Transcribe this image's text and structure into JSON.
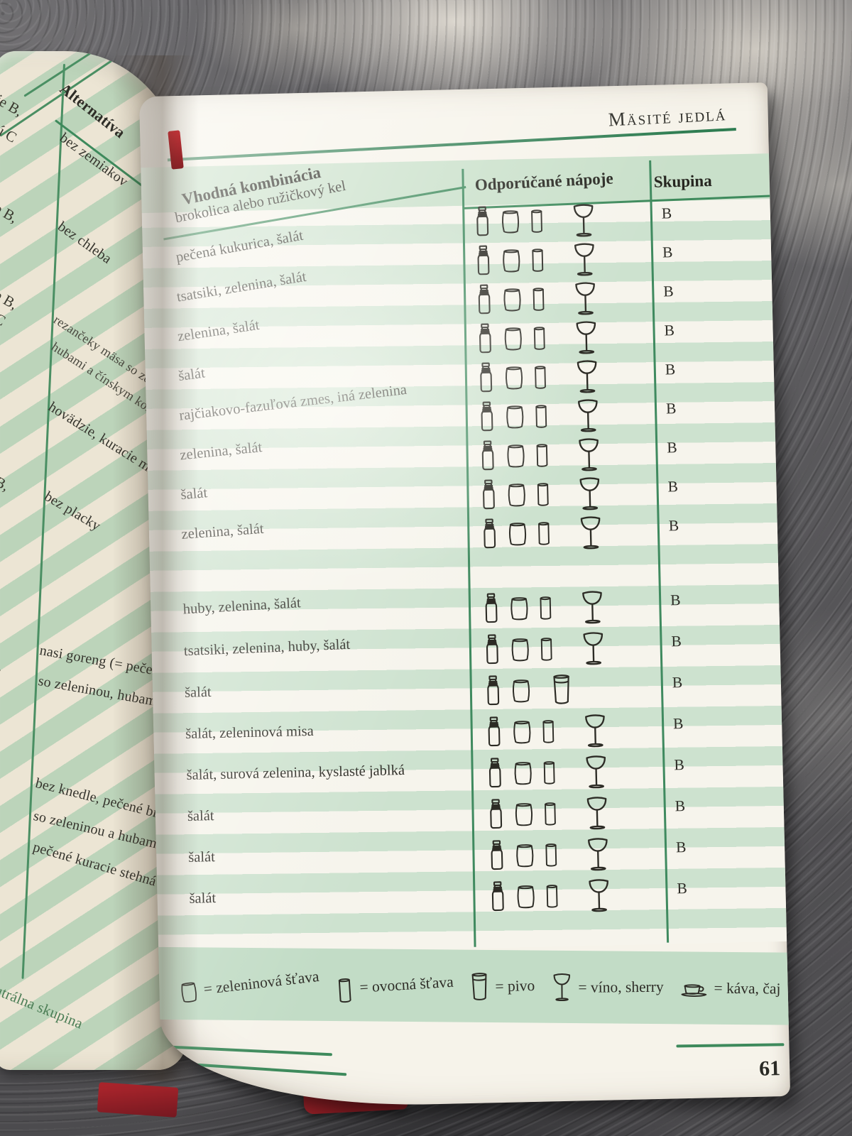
{
  "colors": {
    "rule_green": "#3e8a5c",
    "stripe_green": "#cde2cf",
    "cover_red": "#c0272d"
  },
  "book": {
    "right_page": {
      "header": "Mäsité jedlá",
      "page_number": "61",
      "table": {
        "col_combination": "Vhodná kombinácia",
        "col_drinks": "Odporúčané nápoje",
        "col_group": "Skupina",
        "rows": [
          {
            "label": "brokolica alebo ružičkový kel",
            "icons": [
              "bottle",
              "vegetable-juice",
              "fruit-juice",
              "wine-glass"
            ],
            "group": "B"
          },
          {
            "label": "pečená kukurica, šalát",
            "icons": [
              "bottle",
              "vegetable-juice",
              "fruit-juice",
              "wine-glass"
            ],
            "group": "B"
          },
          {
            "label": "tsatsiki, zelenina, šalát",
            "icons": [
              "bottle",
              "vegetable-juice",
              "fruit-juice",
              "wine-glass"
            ],
            "group": "B"
          },
          {
            "label": "zelenina, šalát",
            "icons": [
              "bottle",
              "vegetable-juice",
              "fruit-juice",
              "wine-glass"
            ],
            "group": "B"
          },
          {
            "label": "šalát",
            "icons": [
              "bottle",
              "vegetable-juice",
              "fruit-juice",
              "wine-glass"
            ],
            "group": "B"
          },
          {
            "label": "rajčiakovo-fazuľová zmes, iná zelenina",
            "icons": [
              "bottle",
              "vegetable-juice",
              "fruit-juice",
              "wine-glass"
            ],
            "group": "B"
          },
          {
            "label": "zelenina, šalát",
            "icons": [
              "bottle",
              "vegetable-juice",
              "fruit-juice",
              "wine-glass"
            ],
            "group": "B"
          },
          {
            "label": "šalát",
            "icons": [
              "bottle",
              "vegetable-juice",
              "fruit-juice",
              "wine-glass"
            ],
            "group": "B"
          },
          {
            "label": "zelenina, šalát",
            "icons": [
              "bottle",
              "vegetable-juice",
              "fruit-juice",
              "wine-glass"
            ],
            "group": "B"
          },
          {
            "label": "huby, zelenina, šalát",
            "gap_before": true,
            "icons": [
              "bottle",
              "vegetable-juice",
              "fruit-juice",
              "wine-glass"
            ],
            "group": "B"
          },
          {
            "label": "tsatsiki, zelenina, huby, šalát",
            "icons": [
              "bottle",
              "vegetable-juice",
              "fruit-juice",
              "wine-glass"
            ],
            "group": "B"
          },
          {
            "label": "šalát",
            "icons": [
              "bottle",
              "vegetable-juice",
              "beer"
            ],
            "group": "B"
          },
          {
            "label": "šalát, zeleninová misa",
            "icons": [
              "bottle",
              "vegetable-juice",
              "fruit-juice",
              "wine-glass"
            ],
            "group": "B"
          },
          {
            "label": "šalát, surová zelenina, kyslasté jablká",
            "icons": [
              "bottle",
              "vegetable-juice",
              "fruit-juice",
              "wine-glass"
            ],
            "group": "B"
          },
          {
            "label": "šalát",
            "icons": [
              "bottle",
              "vegetable-juice",
              "fruit-juice",
              "wine-glass"
            ],
            "group": "B"
          },
          {
            "label": "šalát",
            "icons": [
              "bottle",
              "vegetable-juice",
              "fruit-juice",
              "wine-glass"
            ],
            "group": "B"
          },
          {
            "label": "šalát",
            "icons": [
              "bottle",
              "vegetable-juice",
              "fruit-juice",
              "wine-glass"
            ],
            "group": "B"
          }
        ]
      },
      "legend": {
        "items": [
          {
            "icon": "vegetable-juice",
            "label": "= zeleninová šťava"
          },
          {
            "icon": "fruit-juice",
            "label": "= ovocná šťava"
          },
          {
            "icon": "beer",
            "label": "= pivo"
          },
          {
            "icon": "wine-glass",
            "label": "= víno, sherry"
          },
          {
            "icon": "coffee-cup",
            "label": "= káva, čaj"
          }
        ]
      }
    },
    "left_page": {
      "column_header": "Alternatíva",
      "entries": [
        "bez zemiakov",
        "bez chleba",
        "rezančeky mäsa so zelen",
        "hubami a čínskym koren",
        "hovädzie, kuracie mäso",
        "bez placky",
        "nasi goreng (= pečená ryž",
        "so zeleninou, hubami",
        "bez knedle, pečené bravč",
        "so zeleninou a hubami",
        "pečené kuracie stehná",
        "utrálna skupina"
      ],
      "edge_fragments": [
        "je B,",
        "ú C",
        "e B,",
        "e B,",
        "C",
        "B,",
        ","
      ]
    }
  }
}
